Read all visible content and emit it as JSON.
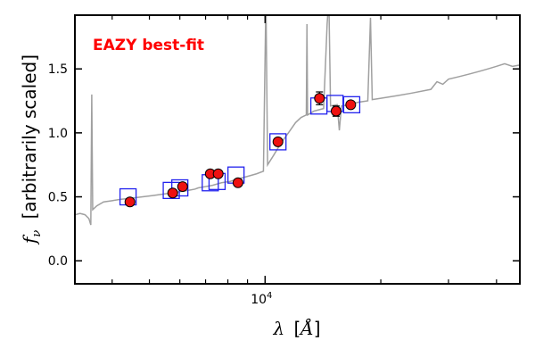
{
  "chart_data": {
    "type": "scatter",
    "title": "",
    "xlabel_symbol": "λ",
    "xlabel_unit": "Å",
    "ylabel_symbol": "f",
    "ylabel_sub": "ν",
    "ylabel_text": "[arbitrarily scaled]",
    "annotation": "EAZY best-fit",
    "x_scale": "log",
    "xlim": [
      3200,
      46000
    ],
    "ylim": [
      -0.18,
      1.92
    ],
    "yticks": [
      0.0,
      0.5,
      1.0,
      1.5
    ],
    "ytick_labels": [
      "0.0",
      "0.5",
      "1.0",
      "1.5"
    ],
    "xtick_major": 10000,
    "xtick_major_label_base": "10",
    "xtick_major_label_exp": "4",
    "grid": false,
    "colors": {
      "model": "#a0a0a0",
      "observed_fill": "#ee1111",
      "observed_edge": "#000000",
      "model_photometry": "#2222ee",
      "annotation": "#ff0000"
    },
    "series": [
      {
        "kind": "line",
        "description_role": "model-spectrum",
        "points": [
          [
            3200,
            0.36
          ],
          [
            3300,
            0.37
          ],
          [
            3400,
            0.36
          ],
          [
            3480,
            0.33
          ],
          [
            3520,
            0.28
          ],
          [
            3540,
            1.3
          ],
          [
            3560,
            0.4
          ],
          [
            3650,
            0.43
          ],
          [
            3800,
            0.46
          ],
          [
            4000,
            0.47
          ],
          [
            4200,
            0.48
          ],
          [
            4500,
            0.49
          ],
          [
            4800,
            0.5
          ],
          [
            5100,
            0.51
          ],
          [
            5400,
            0.52
          ],
          [
            5700,
            0.53
          ],
          [
            6000,
            0.54
          ],
          [
            6300,
            0.55
          ],
          [
            6563,
            0.56
          ],
          [
            6700,
            0.57
          ],
          [
            7000,
            0.58
          ],
          [
            7300,
            0.59
          ],
          [
            7700,
            0.61
          ],
          [
            8100,
            0.62
          ],
          [
            8500,
            0.64
          ],
          [
            9000,
            0.66
          ],
          [
            9500,
            0.68
          ],
          [
            9900,
            0.7
          ],
          [
            10050,
            2.05
          ],
          [
            10150,
            0.75
          ],
          [
            10500,
            0.82
          ],
          [
            11000,
            0.92
          ],
          [
            11500,
            1.0
          ],
          [
            12000,
            1.08
          ],
          [
            12400,
            1.12
          ],
          [
            12800,
            1.14
          ],
          [
            12850,
            1.85
          ],
          [
            12900,
            1.14
          ],
          [
            13400,
            1.17
          ],
          [
            14200,
            1.19
          ],
          [
            14500,
            1.85
          ],
          [
            14650,
            2.05
          ],
          [
            14800,
            1.21
          ],
          [
            15400,
            1.22
          ],
          [
            15600,
            1.02
          ],
          [
            15800,
            1.21
          ],
          [
            16500,
            1.22
          ],
          [
            17500,
            1.24
          ],
          [
            18500,
            1.25
          ],
          [
            18800,
            1.9
          ],
          [
            19000,
            1.26
          ],
          [
            20000,
            1.27
          ],
          [
            22000,
            1.29
          ],
          [
            24000,
            1.31
          ],
          [
            27000,
            1.34
          ],
          [
            28000,
            1.4
          ],
          [
            29000,
            1.38
          ],
          [
            30000,
            1.42
          ],
          [
            32000,
            1.44
          ],
          [
            34000,
            1.46
          ],
          [
            36000,
            1.48
          ],
          [
            38000,
            1.5
          ],
          [
            40000,
            1.52
          ],
          [
            42000,
            1.54
          ],
          [
            44000,
            1.52
          ],
          [
            46000,
            1.53
          ]
        ]
      },
      {
        "kind": "model-photometry-squares",
        "points": [
          [
            4400,
            0.5
          ],
          [
            5700,
            0.55
          ],
          [
            6000,
            0.57
          ],
          [
            7200,
            0.61
          ],
          [
            7500,
            0.62
          ],
          [
            8400,
            0.67
          ],
          [
            10800,
            0.93
          ],
          [
            13800,
            1.21
          ],
          [
            15200,
            1.23
          ],
          [
            16800,
            1.22
          ]
        ]
      },
      {
        "kind": "observed-points",
        "points": [
          [
            4450,
            0.46,
            0.0
          ],
          [
            5750,
            0.53,
            0.0
          ],
          [
            6100,
            0.58,
            0.0
          ],
          [
            7200,
            0.68,
            0.0
          ],
          [
            7550,
            0.68,
            0.0
          ],
          [
            8500,
            0.61,
            0.02
          ],
          [
            10800,
            0.93,
            0.02
          ],
          [
            13850,
            1.27,
            0.05
          ],
          [
            15300,
            1.17,
            0.04
          ],
          [
            16700,
            1.22,
            0.02
          ]
        ]
      }
    ]
  }
}
